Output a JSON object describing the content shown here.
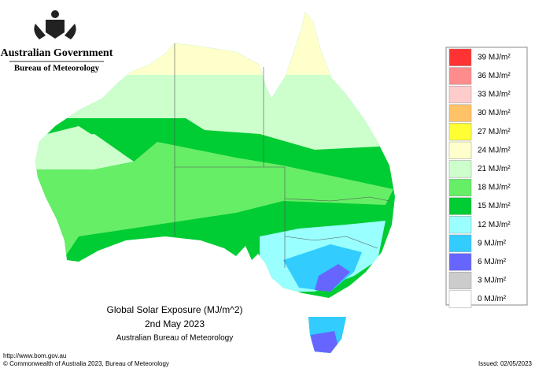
{
  "header": {
    "agency": "Australian Government",
    "bureau": "Bureau of Meteorology"
  },
  "map": {
    "title": "Global Solar Exposure (MJ/m^2)",
    "date": "2nd May 2023",
    "source": "Australian Bureau of Meteorology"
  },
  "legend": [
    {
      "label": "39 MJ/m²",
      "color": "#ff3333"
    },
    {
      "label": "36 MJ/m²",
      "color": "#ff8c8c"
    },
    {
      "label": "33 MJ/m²",
      "color": "#ffcccc"
    },
    {
      "label": "30 MJ/m²",
      "color": "#ffc266"
    },
    {
      "label": "27 MJ/m²",
      "color": "#ffff33"
    },
    {
      "label": "24 MJ/m²",
      "color": "#ffffcc"
    },
    {
      "label": "21 MJ/m²",
      "color": "#ccffcc"
    },
    {
      "label": "18 MJ/m²",
      "color": "#66ee66"
    },
    {
      "label": "15 MJ/m²",
      "color": "#00cc33"
    },
    {
      "label": "12 MJ/m²",
      "color": "#99ffff"
    },
    {
      "label": "9 MJ/m²",
      "color": "#33ccff"
    },
    {
      "label": "6 MJ/m²",
      "color": "#6666ff"
    },
    {
      "label": "3 MJ/m²",
      "color": "#cccccc"
    },
    {
      "label": "0 MJ/m²",
      "color": "#ffffff"
    }
  ],
  "footer": {
    "url": "http://www.bom.gov.au",
    "copyright": "© Commonwealth of Australia 2023, Bureau of Meteorology",
    "issued": "Issued: 02/05/2023"
  }
}
